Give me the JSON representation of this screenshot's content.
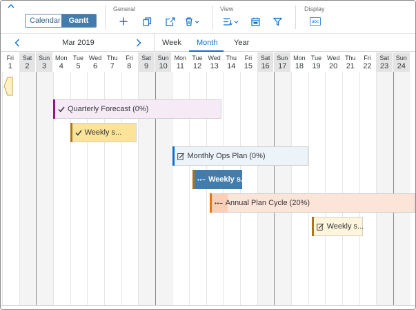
{
  "toolbar": {
    "view_switch": {
      "calendar": "Calendar",
      "gantt": "Gantt"
    },
    "groups": {
      "general": "General",
      "view": "View",
      "display": "Display"
    },
    "icons": [
      "chevron-up-icon",
      "add-icon",
      "copy-icon",
      "share-icon",
      "delete-icon",
      "view-settings-icon",
      "calendar-view-icon",
      "filter-icon",
      "text-display-icon"
    ]
  },
  "nav": {
    "month_label": "Mar 2019",
    "tabs": [
      {
        "label": "Week",
        "selected": false
      },
      {
        "label": "Month",
        "selected": true
      },
      {
        "label": "Year",
        "selected": false
      }
    ]
  },
  "days": [
    {
      "name": "Fri",
      "num": "1",
      "weekend": false
    },
    {
      "name": "Sat",
      "num": "2",
      "weekend": true
    },
    {
      "name": "Sun",
      "num": "3",
      "weekend": true
    },
    {
      "name": "Mon",
      "num": "4",
      "weekend": false
    },
    {
      "name": "Tue",
      "num": "5",
      "weekend": false
    },
    {
      "name": "Wed",
      "num": "6",
      "weekend": false
    },
    {
      "name": "Thu",
      "num": "7",
      "weekend": false
    },
    {
      "name": "Fri",
      "num": "8",
      "weekend": false
    },
    {
      "name": "Sat",
      "num": "9",
      "weekend": true
    },
    {
      "name": "Sun",
      "num": "10",
      "weekend": true
    },
    {
      "name": "Mon",
      "num": "11",
      "weekend": false
    },
    {
      "name": "Tue",
      "num": "12",
      "weekend": false
    },
    {
      "name": "Wed",
      "num": "13",
      "weekend": false
    },
    {
      "name": "Thu",
      "num": "14",
      "weekend": false
    },
    {
      "name": "Fri",
      "num": "15",
      "weekend": false
    },
    {
      "name": "Sat",
      "num": "16",
      "weekend": true
    },
    {
      "name": "Sun",
      "num": "17",
      "weekend": true
    },
    {
      "name": "Mon",
      "num": "18",
      "weekend": false
    },
    {
      "name": "Tue",
      "num": "19",
      "weekend": false
    },
    {
      "name": "Wed",
      "num": "20",
      "weekend": false
    },
    {
      "name": "Thu",
      "num": "21",
      "weekend": false
    },
    {
      "name": "Fri",
      "num": "22",
      "weekend": false
    },
    {
      "name": "Sat",
      "num": "23",
      "weekend": true
    },
    {
      "name": "Sun",
      "num": "24",
      "weekend": true
    }
  ],
  "tasks": [
    {
      "label": "Quarterly Forecast (0%)",
      "icon": "check-icon",
      "start_day": 4,
      "end_day": 12.9,
      "row": 0,
      "bg": "#f6eaf6",
      "edge": "#8b1a7a",
      "progress": 0,
      "bold": false,
      "text_color": "#32363a"
    },
    {
      "label": "Weekly s...",
      "icon": "check-icon",
      "start_day": 5,
      "end_day": 7.9,
      "row": 1,
      "bg": "#fbe49a",
      "edge": "#b07316",
      "progress": 0,
      "bold": false,
      "text_color": "#32363a"
    },
    {
      "label": "Monthly Ops Plan (0%)",
      "icon": "edit-icon",
      "start_day": 11,
      "end_day": 18,
      "row": 2,
      "bg": "#ecf4fa",
      "edge": "#0a6ed1",
      "progress": 0,
      "bold": false,
      "text_color": "#32363a"
    },
    {
      "label": "Weekly s...",
      "icon": "more-icon",
      "start_day": 12.2,
      "end_day": 14.1,
      "row": 3,
      "bg": "#427cac",
      "edge": "#b07316",
      "progress": 0,
      "bold": true,
      "text_color": "#ffffff"
    },
    {
      "label": "Annual Plan Cycle (20%)",
      "icon": "more-icon",
      "start_day": 13.2,
      "end_day": 25,
      "row": 4,
      "bg": "#fde4d8",
      "edge": "#e9730c",
      "progress": 20,
      "progress_color": "#fbcfb6",
      "bold": false,
      "text_color": "#32363a"
    },
    {
      "label": "Weekly s...",
      "icon": "edit-icon",
      "start_day": 19.2,
      "end_day": 21.2,
      "row": 5,
      "bg": "#fdf5dc",
      "edge": "#b07316",
      "progress": 0,
      "bold": false,
      "text_color": "#32363a"
    }
  ]
}
